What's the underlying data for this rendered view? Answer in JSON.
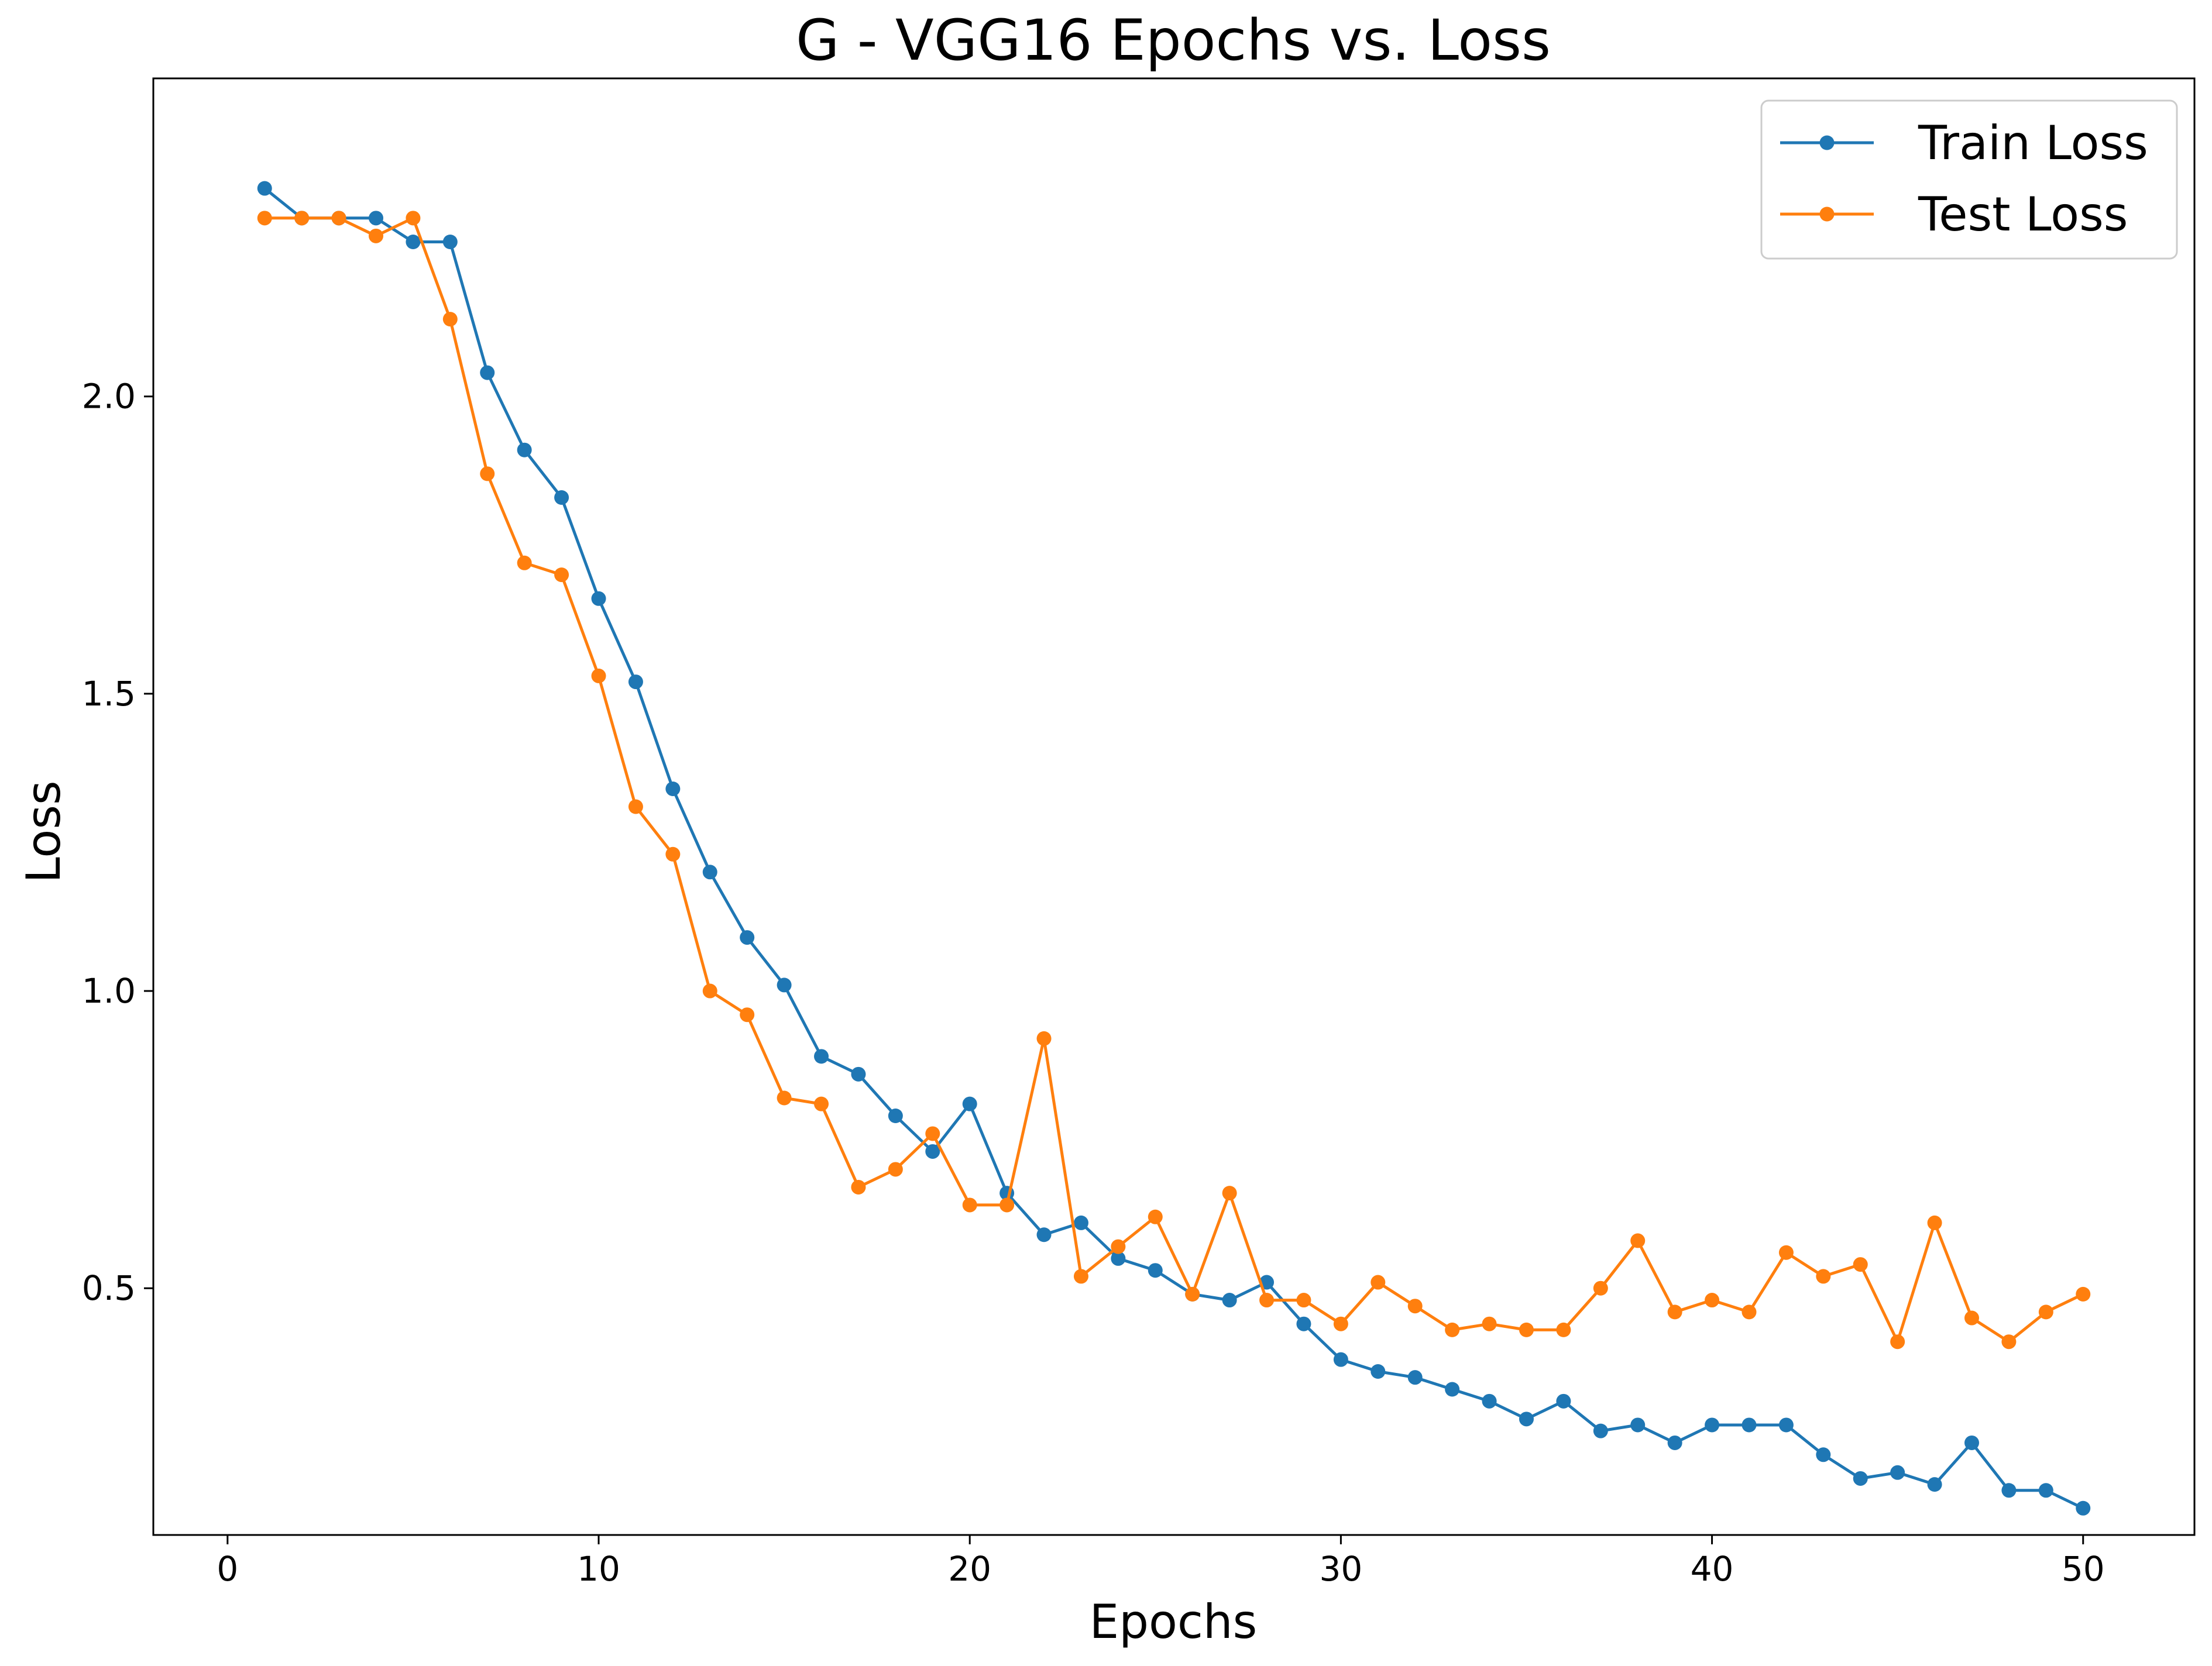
{
  "chart_data": {
    "type": "line",
    "title": "G - VGG16 Epochs vs. Loss",
    "xlabel": "Epochs",
    "ylabel": "Loss",
    "xlim": [
      -2.0,
      53.0
    ],
    "ylim": [
      0.085,
      2.535
    ],
    "xticks": [
      0,
      10,
      20,
      30,
      40,
      50
    ],
    "yticks": [
      0.5,
      1.0,
      1.5,
      2.0
    ],
    "ytick_labels": [
      "0.5",
      "1.0",
      "1.5",
      "2.0"
    ],
    "grid": false,
    "legend": "top-right",
    "x": [
      1,
      2,
      3,
      4,
      5,
      6,
      7,
      8,
      9,
      10,
      11,
      12,
      13,
      14,
      15,
      16,
      17,
      18,
      19,
      20,
      21,
      22,
      23,
      24,
      25,
      26,
      27,
      28,
      29,
      30,
      31,
      32,
      33,
      34,
      35,
      36,
      37,
      38,
      39,
      40,
      41,
      42,
      43,
      44,
      45,
      46,
      47,
      48,
      49,
      50
    ],
    "series": [
      {
        "name": "Train Loss",
        "color": "#1f77b4",
        "values": [
          2.35,
          2.3,
          2.3,
          2.3,
          2.26,
          2.26,
          2.04,
          1.91,
          1.83,
          1.66,
          1.52,
          1.34,
          1.2,
          1.09,
          1.01,
          0.89,
          0.86,
          0.79,
          0.73,
          0.81,
          0.66,
          0.59,
          0.61,
          0.55,
          0.53,
          0.49,
          0.48,
          0.51,
          0.44,
          0.38,
          0.36,
          0.35,
          0.33,
          0.31,
          0.28,
          0.31,
          0.26,
          0.27,
          0.24,
          0.27,
          0.27,
          0.27,
          0.22,
          0.18,
          0.19,
          0.17,
          0.24,
          0.16,
          0.16,
          0.13
        ]
      },
      {
        "name": "Test Loss",
        "color": "#ff7f0e",
        "values": [
          2.3,
          2.3,
          2.3,
          2.27,
          2.3,
          2.13,
          1.87,
          1.72,
          1.7,
          1.53,
          1.31,
          1.23,
          1.0,
          0.96,
          0.82,
          0.81,
          0.67,
          0.7,
          0.76,
          0.64,
          0.64,
          0.92,
          0.52,
          0.57,
          0.62,
          0.49,
          0.66,
          0.48,
          0.48,
          0.44,
          0.51,
          0.47,
          0.43,
          0.44,
          0.43,
          0.43,
          0.5,
          0.58,
          0.46,
          0.48,
          0.46,
          0.56,
          0.52,
          0.54,
          0.41,
          0.61,
          0.45,
          0.41,
          0.46,
          0.49
        ]
      }
    ]
  }
}
